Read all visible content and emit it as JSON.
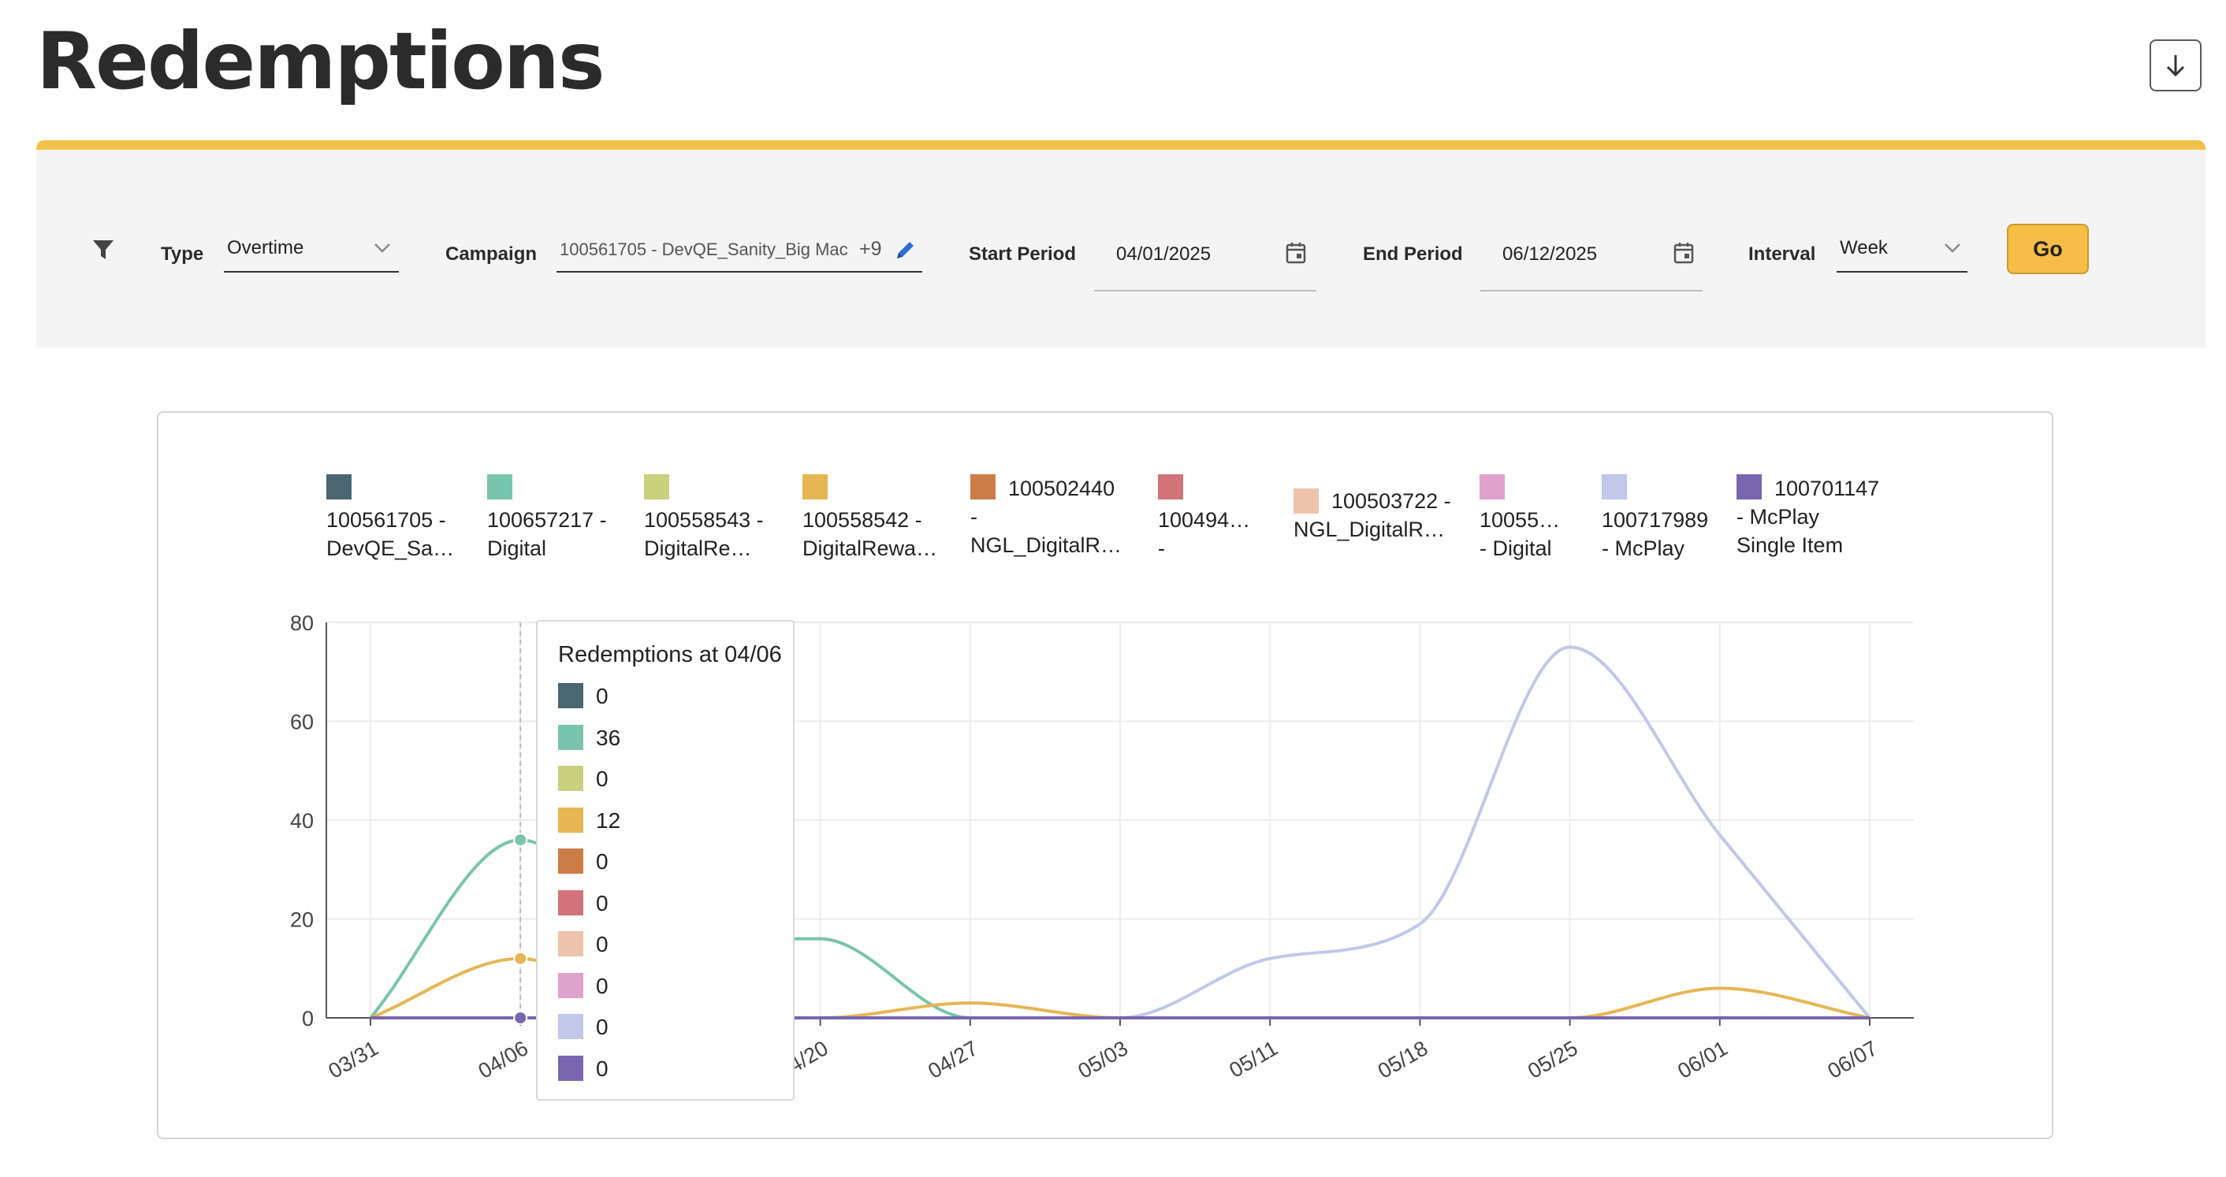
{
  "page": {
    "title": "Redemptions"
  },
  "toolbar": {
    "download_icon": "download-arrow-icon"
  },
  "filters": {
    "filter_icon": "filter-funnel-icon",
    "type_label": "Type",
    "type_value": "Overtime",
    "campaign_label": "Campaign",
    "campaign_value": "100561705 - DevQE_Sanity_Big Mac",
    "campaign_more": "+9",
    "start_label": "Start Period",
    "start_value": "04/01/2025",
    "end_label": "End Period",
    "end_value": "06/12/2025",
    "interval_label": "Interval",
    "interval_value": "Week",
    "go_label": "Go"
  },
  "chart_data": {
    "type": "line",
    "title": "",
    "xlabel": "",
    "ylabel": "",
    "ylim": [
      0,
      80
    ],
    "yticks": [
      "0",
      "20",
      "40",
      "60",
      "80"
    ],
    "grid": true,
    "legend_position": "top",
    "categories": [
      "03/31",
      "04/06",
      "04/13",
      "04/20",
      "04/27",
      "05/03",
      "05/11",
      "05/18",
      "05/25",
      "06/01",
      "06/07"
    ],
    "series": [
      {
        "name": "100561705 - DevQE_Sa…",
        "color": "#4a6670",
        "values": [
          0,
          0,
          0,
          0,
          0,
          0,
          0,
          0,
          0,
          0,
          0
        ]
      },
      {
        "name": "100657217 - Digital",
        "color": "#79c4ad",
        "values": [
          0,
          36,
          16,
          16,
          0,
          0,
          0,
          0,
          0,
          0,
          0
        ]
      },
      {
        "name": "100558543 - DigitalRe…",
        "color": "#c9d07e",
        "values": [
          0,
          0,
          0,
          0,
          0,
          0,
          0,
          0,
          0,
          0,
          0
        ]
      },
      {
        "name": "100558542 - DigitalRewa…",
        "color": "#e6b653",
        "values": [
          0,
          12,
          0,
          0,
          3,
          0,
          0,
          0,
          0,
          6,
          0
        ]
      },
      {
        "name": "100502440 - NGL_DigitalR…",
        "color": "#cc7d45",
        "values": [
          0,
          0,
          0,
          0,
          0,
          0,
          0,
          0,
          0,
          0,
          0
        ]
      },
      {
        "name": "100494… -",
        "color": "#d17378",
        "values": [
          0,
          0,
          0,
          0,
          0,
          0,
          0,
          0,
          0,
          0,
          0
        ]
      },
      {
        "name": "100503722 - NGL_DigitalR…",
        "color": "#edc3ac",
        "values": [
          0,
          0,
          0,
          0,
          0,
          0,
          0,
          0,
          0,
          0,
          0
        ]
      },
      {
        "name": "10055… - Digital",
        "color": "#dfa2cc",
        "values": [
          0,
          0,
          0,
          0,
          0,
          0,
          0,
          0,
          0,
          0,
          0
        ]
      },
      {
        "name": "100717989 - McPlay",
        "color": "#c1c8ea",
        "values": [
          0,
          0,
          0,
          0,
          0,
          0,
          12,
          19,
          75,
          37,
          0
        ]
      },
      {
        "name": "100701147 - McPlay Single Item",
        "color": "#7867b0",
        "values": [
          0,
          0,
          0,
          0,
          0,
          0,
          0,
          0,
          0,
          0,
          0
        ]
      }
    ],
    "legend_labels": [
      "100561705 -\nDevQE_Sa…",
      "100657217 -\nDigital",
      "100558543 -\nDigitalRe…",
      "100558542 -\nDigitalRewa…",
      "100502440\n-\nNGL_DigitalR…",
      "100494…\n-",
      "100503722 -\nNGL_DigitalR…",
      "10055…\n- Digital",
      "100717989\n- McPlay",
      "100701147\n- McPlay\nSingle Item"
    ],
    "tooltip": {
      "title": "Redemptions at 04/06",
      "index": 1,
      "values": [
        "0",
        "36",
        "0",
        "12",
        "0",
        "0",
        "0",
        "0",
        "0",
        "0"
      ]
    }
  }
}
